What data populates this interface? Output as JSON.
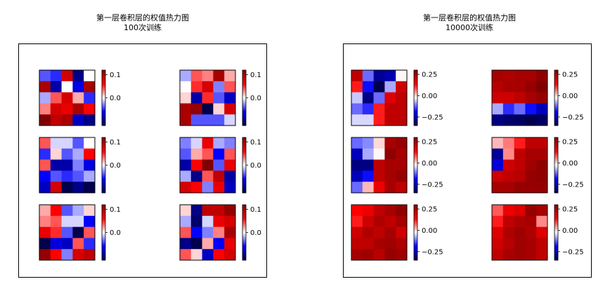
{
  "colors": {
    "colormap": "seismic",
    "colormap_stops": [
      "#00004c",
      "#0000ff",
      "#ffffff",
      "#ff0000",
      "#800000"
    ],
    "grid_line": "#000000"
  },
  "panels": [
    {
      "title_line1": "第一层卷积层的权值热力图",
      "title_line2": "100次训练"
    },
    {
      "title_line1": "第一层卷积层的权值热力图",
      "title_line2": "10000次训练"
    }
  ],
  "chart_data": [
    {
      "type": "heatmap",
      "title": "第一层卷积层的权值热力图 100次训练",
      "grid": "3x2",
      "vmin": -0.12,
      "vmax": 0.12,
      "colorbar_ticks": [
        0.1,
        0.0
      ],
      "colorbar_tick_labels": [
        "0.1",
        "0.0"
      ],
      "maps": [
        [
          [
            -0.04,
            -0.05,
            0.08,
            -0.1,
            0.0
          ],
          [
            0.1,
            -0.09,
            0.0,
            -0.07,
            0.1
          ],
          [
            -0.02,
            0.04,
            0.08,
            0.02,
            -0.05
          ],
          [
            0.03,
            0.08,
            0.07,
            0.1,
            0.06
          ],
          [
            0.12,
            0.09,
            0.1,
            -0.08,
            -0.1
          ]
        ],
        [
          [
            -0.02,
            0.04,
            0.03,
            0.1,
            0.02
          ],
          [
            0.0,
            0.05,
            0.08,
            -0.03,
            0.04
          ],
          [
            0.01,
            -0.09,
            0.05,
            -0.04,
            -0.08
          ],
          [
            0.1,
            0.11,
            -0.12,
            0.01,
            0.08
          ],
          [
            0.1,
            -0.04,
            -0.04,
            -0.04,
            -0.01
          ]
        ],
        [
          [
            0.04,
            -0.01,
            -0.01,
            -0.04,
            0.0
          ],
          [
            -0.05,
            0.01,
            -0.04,
            -0.02,
            0.06
          ],
          [
            0.04,
            -0.09,
            -0.09,
            -0.03,
            -0.07
          ],
          [
            -0.06,
            -0.04,
            -0.05,
            -0.04,
            -0.02
          ],
          [
            -0.08,
            0.08,
            -0.12,
            -0.1,
            -0.12
          ]
        ],
        [
          [
            -0.03,
            -0.01,
            0.07,
            -0.02,
            -0.03
          ],
          [
            -0.04,
            0.02,
            0.04,
            -0.06,
            0.04
          ],
          [
            -0.09,
            0.06,
            0.12,
            -0.04,
            0.07
          ],
          [
            -0.02,
            -0.1,
            0.04,
            0.09,
            -0.09
          ],
          [
            0.08,
            0.06,
            -0.03,
            0.07,
            -0.08
          ]
        ],
        [
          [
            0.02,
            0.06,
            -0.04,
            -0.02,
            0.01
          ],
          [
            0.03,
            0.04,
            -0.01,
            -0.01,
            -0.06
          ],
          [
            0.07,
            0.05,
            -0.04,
            -0.12,
            0.04
          ],
          [
            -0.12,
            -0.07,
            -0.08,
            0.04,
            -0.05
          ],
          [
            0.11,
            0.06,
            -0.03,
            0.08,
            0.09
          ]
        ],
        [
          [
            0.01,
            -0.1,
            0.09,
            0.09,
            0.11
          ],
          [
            -0.02,
            -0.11,
            -0.01,
            0.07,
            0.08
          ],
          [
            0.04,
            -0.06,
            -0.03,
            0.03,
            0.1
          ],
          [
            -0.1,
            -0.12,
            0.02,
            -0.06,
            0.07
          ],
          [
            0.04,
            0.01,
            -0.08,
            0.06,
            0.08
          ]
        ]
      ]
    },
    {
      "type": "heatmap",
      "title": "第一层卷积层的权值热力图 10000次训练",
      "grid": "3x2",
      "vmin": -0.35,
      "vmax": 0.3,
      "colorbar_ticks": [
        0.25,
        0.0,
        -0.25
      ],
      "colorbar_tick_labels": [
        "0.25",
        "0.00",
        "−0.25"
      ],
      "maps": [
        [
          [
            0.22,
            -0.12,
            -0.28,
            -0.26,
            -0.02
          ],
          [
            0.12,
            -0.18,
            -0.35,
            -0.08,
            0.2
          ],
          [
            -0.06,
            -0.3,
            -0.12,
            0.18,
            0.22
          ],
          [
            -0.12,
            -0.16,
            0.12,
            0.22,
            0.22
          ],
          [
            -0.05,
            -0.05,
            0.12,
            0.22,
            0.22
          ]
        ],
        [
          [
            0.25,
            0.24,
            0.25,
            0.25,
            0.28
          ],
          [
            0.23,
            0.25,
            0.25,
            0.27,
            0.3
          ],
          [
            0.2,
            0.2,
            0.22,
            0.25,
            0.27
          ],
          [
            -0.08,
            -0.16,
            -0.12,
            -0.18,
            -0.25
          ],
          [
            -0.3,
            -0.32,
            -0.33,
            -0.35,
            -0.33
          ]
        ],
        [
          [
            -0.12,
            -0.1,
            0.0,
            0.25,
            0.27
          ],
          [
            -0.25,
            -0.08,
            -0.02,
            0.28,
            0.25
          ],
          [
            -0.3,
            -0.3,
            0.22,
            0.25,
            0.25
          ],
          [
            -0.25,
            -0.18,
            0.22,
            0.25,
            0.27
          ],
          [
            -0.12,
            0.02,
            0.16,
            0.25,
            0.22
          ]
        ],
        [
          [
            0.02,
            0.06,
            0.12,
            0.22,
            0.22
          ],
          [
            -0.28,
            0.05,
            0.22,
            0.25,
            0.25
          ],
          [
            -0.22,
            0.2,
            0.22,
            0.26,
            0.28
          ],
          [
            0.2,
            0.22,
            0.23,
            0.27,
            0.28
          ],
          [
            0.25,
            0.25,
            0.27,
            0.27,
            0.27
          ]
        ],
        [
          [
            0.14,
            0.16,
            0.22,
            0.25,
            0.28
          ],
          [
            0.12,
            0.2,
            0.24,
            0.22,
            0.25
          ],
          [
            0.2,
            0.24,
            0.22,
            0.25,
            0.2
          ],
          [
            0.22,
            0.22,
            0.25,
            0.26,
            0.24
          ],
          [
            0.25,
            0.26,
            0.23,
            0.27,
            0.26
          ]
        ],
        [
          [
            0.08,
            0.16,
            0.18,
            0.27,
            0.25
          ],
          [
            0.12,
            0.22,
            0.24,
            0.25,
            0.05
          ],
          [
            0.18,
            0.24,
            0.26,
            0.24,
            0.18
          ],
          [
            0.2,
            0.23,
            0.26,
            0.25,
            0.22
          ],
          [
            0.22,
            0.25,
            0.26,
            0.25,
            0.22
          ]
        ]
      ]
    }
  ]
}
